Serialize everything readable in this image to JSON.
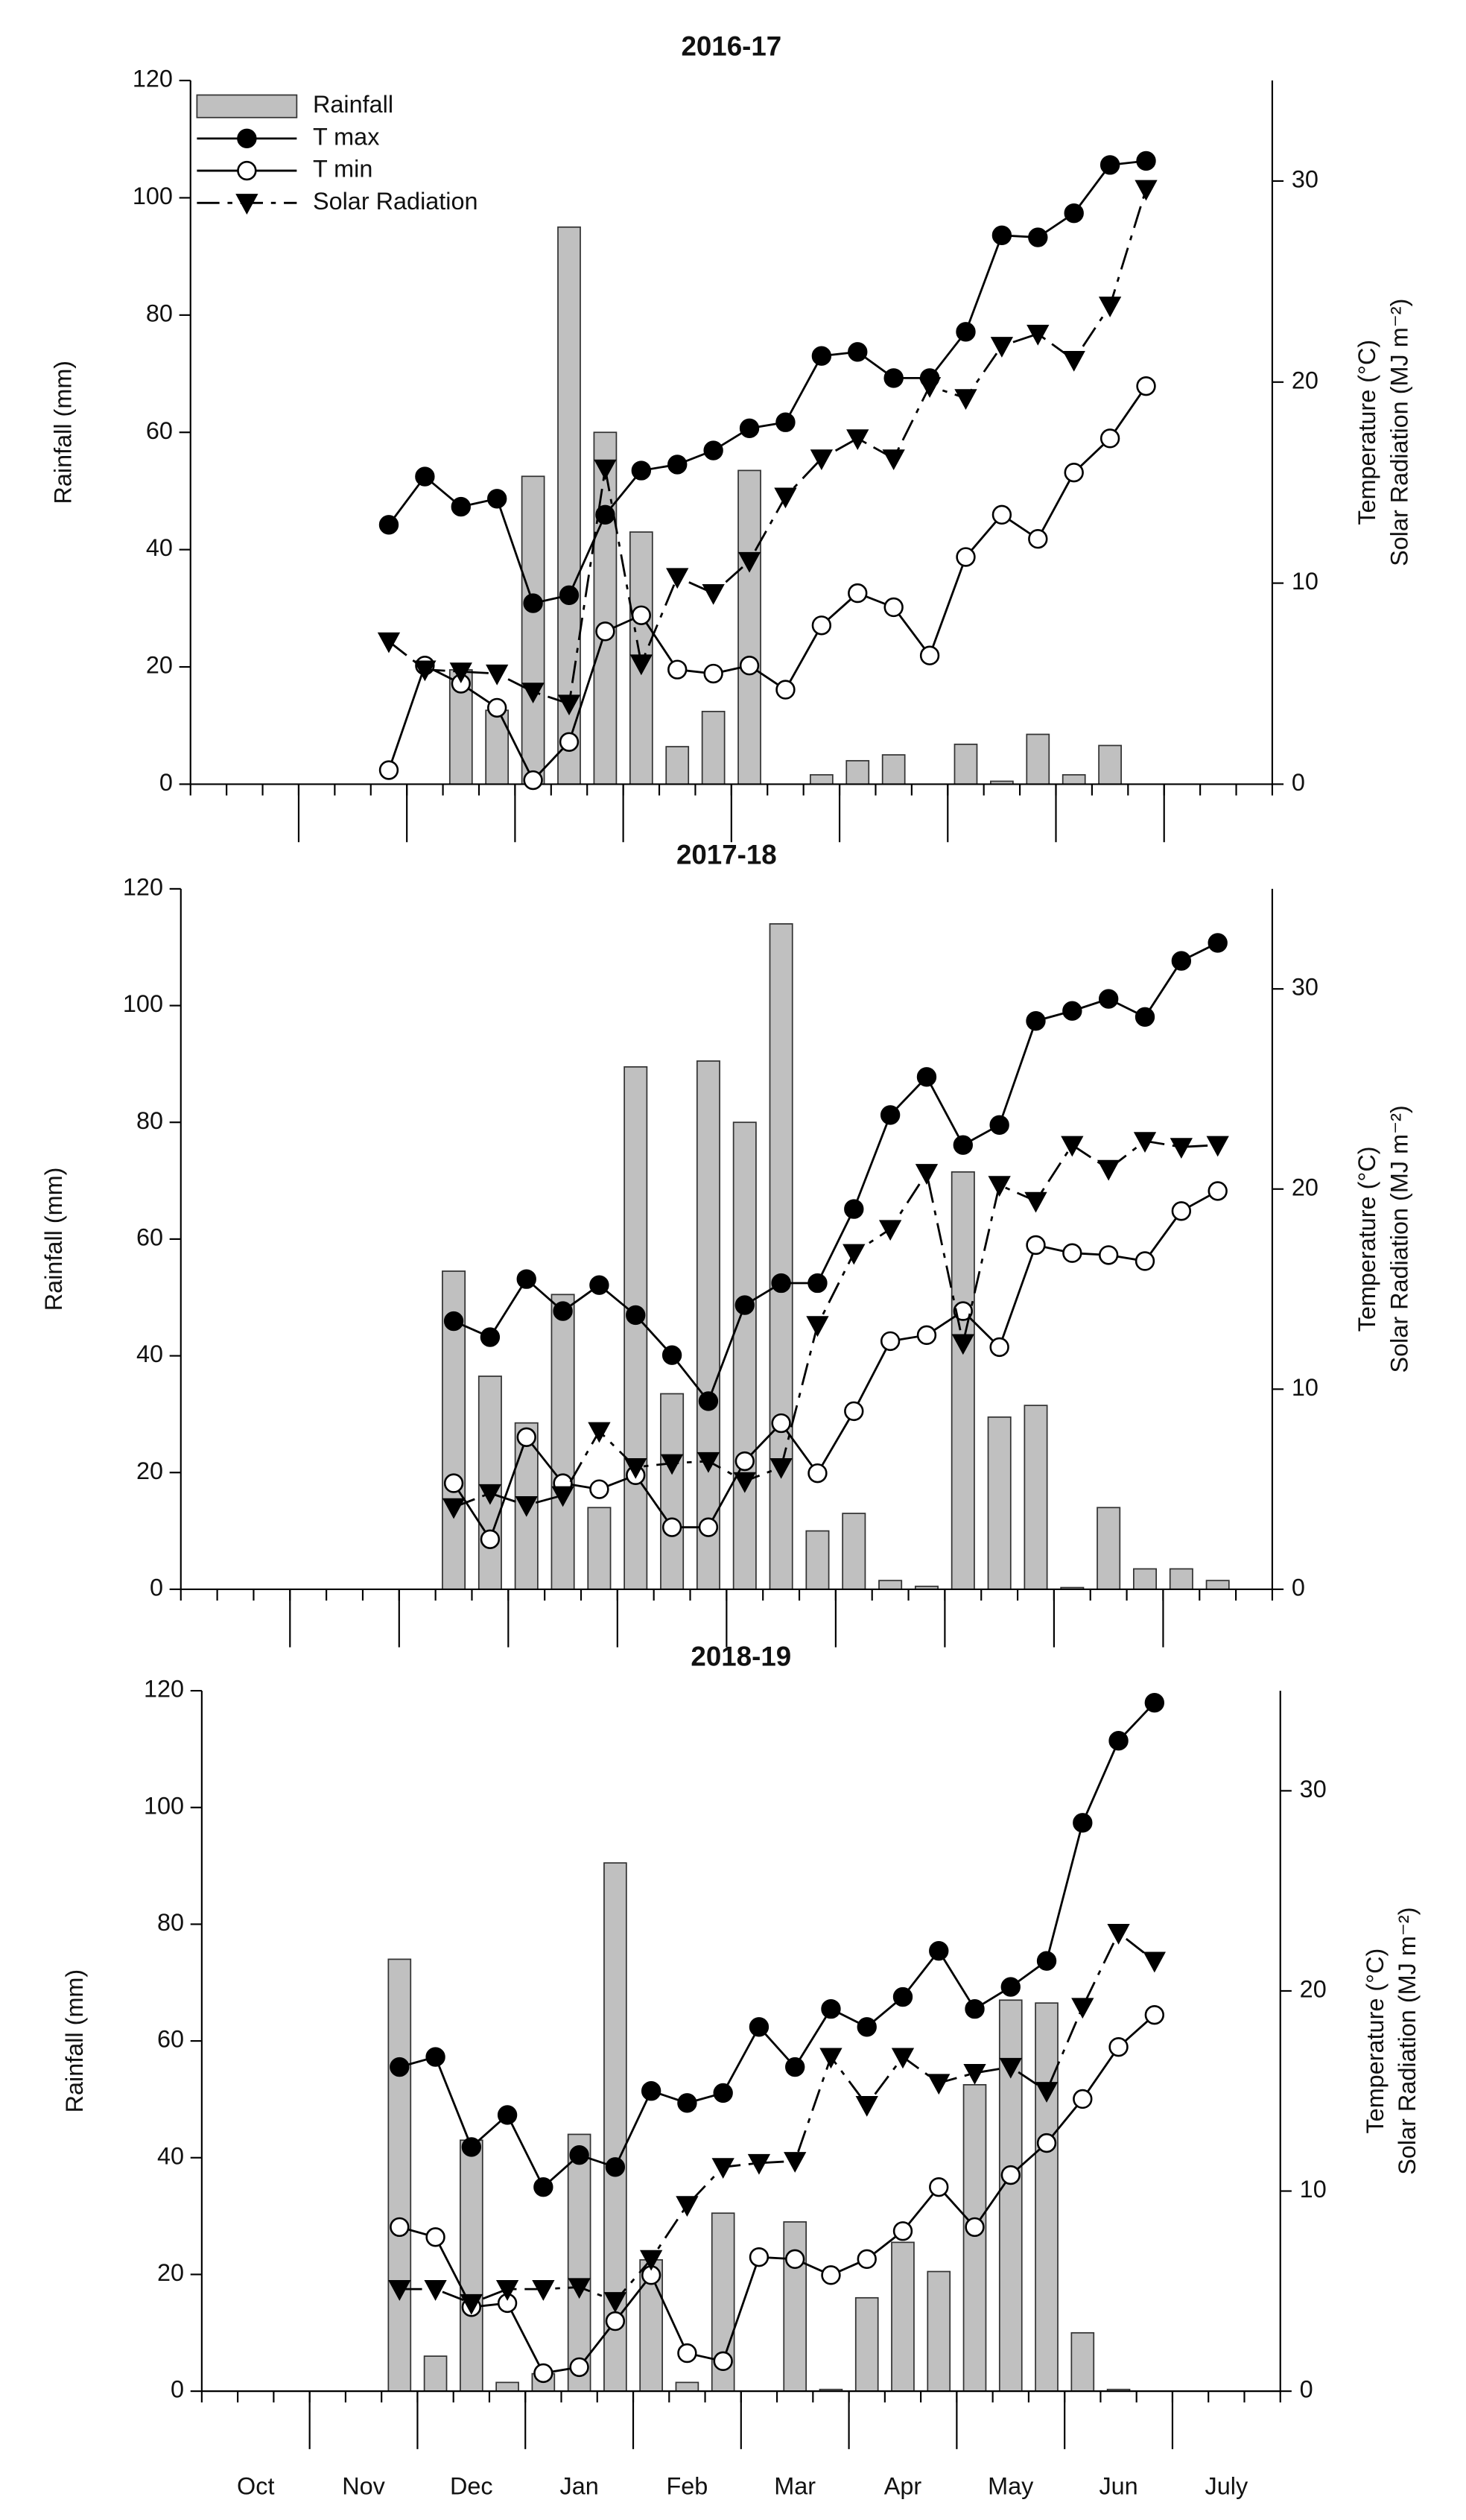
{
  "chart_data": [
    {
      "type": "bar-line",
      "title": "2016-17",
      "ylabel": "Rainfall (mm)",
      "y2label": [
        "Temperature (°C)",
        "Solar Radiation (MJ m⁻²)"
      ],
      "categories": [
        null,
        null,
        null,
        null,
        null,
        null,
        null,
        null,
        null,
        null,
        null,
        null,
        null,
        null,
        null,
        null,
        null,
        null,
        null,
        null,
        null,
        null,
        null,
        null,
        null,
        null,
        null,
        null,
        null,
        null
      ],
      "ylim": [
        0,
        120
      ],
      "yticks": [
        0,
        20,
        40,
        60,
        80,
        100,
        120
      ],
      "y2lim": [
        0,
        35
      ],
      "y2ticks": [
        0,
        10,
        20,
        30
      ],
      "legend": "upper left",
      "series": [
        {
          "name": "Rainfall",
          "kind": "bar",
          "color": "#c0c0c0",
          "values": [
            null,
            null,
            null,
            null,
            null,
            null,
            null,
            19.5,
            12.6,
            52.5,
            95,
            60,
            43,
            6.4,
            12.4,
            53.5,
            null,
            1.6,
            4,
            5,
            null,
            6.8,
            0.5,
            8.5,
            1.6,
            6.6,
            null,
            null,
            null,
            null
          ]
        },
        {
          "name": "T max",
          "kind": "line",
          "axis": "y2",
          "color": "#000000",
          "marker": "circle",
          "marker_fill": "#000000",
          "dash": "solid",
          "values": [
            null,
            null,
            null,
            null,
            null,
            12.9,
            15.3,
            13.8,
            14.2,
            9.0,
            9.4,
            13.4,
            15.6,
            15.9,
            16.6,
            17.7,
            18.0,
            21.3,
            21.5,
            20.2,
            20.2,
            22.5,
            27.3,
            27.2,
            28.4,
            30.8,
            31.0,
            null,
            null,
            null
          ]
        },
        {
          "name": "T min",
          "kind": "line",
          "axis": "y2",
          "color": "#000000",
          "marker": "circle",
          "marker_fill": "#ffffff",
          "dash": "solid",
          "values": [
            null,
            null,
            null,
            null,
            null,
            0.7,
            5.9,
            5.0,
            3.8,
            0.2,
            2.1,
            7.6,
            8.4,
            5.7,
            5.5,
            5.9,
            4.7,
            7.9,
            9.5,
            8.8,
            6.4,
            11.3,
            13.4,
            12.2,
            15.5,
            17.2,
            19.8,
            null,
            null,
            null
          ]
        },
        {
          "name": "Solar Radiation",
          "kind": "line",
          "axis": "y2",
          "color": "#000000",
          "marker": "triangle-down",
          "marker_fill": "#000000",
          "dash": "dashdot",
          "values": [
            null,
            null,
            null,
            null,
            null,
            7.1,
            5.7,
            5.6,
            5.5,
            4.6,
            4.0,
            15.7,
            6.0,
            10.3,
            9.5,
            11.1,
            14.3,
            16.2,
            17.2,
            16.2,
            19.8,
            19.2,
            21.8,
            22.4,
            21.1,
            23.8,
            29.6,
            null,
            null,
            null
          ]
        }
      ]
    },
    {
      "type": "bar-line",
      "title": "2017-18",
      "ylabel": "Rainfall (mm)",
      "y2label": [
        "Temperature (°C)",
        "Solar Radiation (MJ m⁻²)"
      ],
      "categories": [
        null,
        null,
        null,
        null,
        null,
        null,
        null,
        null,
        null,
        null,
        null,
        null,
        null,
        null,
        null,
        null,
        null,
        null,
        null,
        null,
        null,
        null,
        null,
        null,
        null,
        null,
        null,
        null,
        null,
        null
      ],
      "ylim": [
        0,
        120
      ],
      "yticks": [
        0,
        20,
        40,
        60,
        80,
        100,
        120
      ],
      "y2lim": [
        0,
        35
      ],
      "y2ticks": [
        0,
        10,
        20,
        30
      ],
      "series": [
        {
          "kind": "bar",
          "color": "#c0c0c0",
          "values": [
            null,
            null,
            null,
            null,
            null,
            null,
            null,
            54.5,
            36.5,
            28.5,
            50.5,
            14,
            89.5,
            33.5,
            90.5,
            80,
            114,
            10,
            13,
            1.5,
            0.5,
            71.5,
            29.5,
            31.5,
            0.3,
            14,
            3.5,
            3.5,
            1.5,
            null
          ]
        },
        {
          "kind": "line",
          "axis": "y2",
          "color": "#000000",
          "marker": "circle",
          "marker_fill": "#000000",
          "dash": "solid",
          "values": [
            null,
            null,
            null,
            null,
            null,
            null,
            null,
            13.4,
            12.6,
            15.5,
            13.9,
            15.2,
            13.7,
            11.7,
            9.4,
            14.2,
            15.3,
            15.3,
            19.0,
            23.7,
            25.6,
            22.2,
            23.2,
            28.4,
            28.9,
            29.5,
            28.6,
            31.4,
            32.3,
            null
          ]
        },
        {
          "kind": "line",
          "axis": "y2",
          "color": "#000000",
          "marker": "circle",
          "marker_fill": "#ffffff",
          "dash": "solid",
          "values": [
            null,
            null,
            null,
            null,
            null,
            null,
            null,
            5.3,
            2.5,
            7.6,
            5.3,
            5.0,
            5.7,
            3.1,
            3.1,
            6.4,
            8.3,
            5.8,
            8.9,
            12.4,
            12.7,
            13.9,
            12.1,
            17.2,
            16.8,
            16.7,
            16.4,
            18.9,
            19.9,
            null
          ]
        },
        {
          "kind": "line",
          "axis": "y2",
          "color": "#000000",
          "marker": "triangle-down",
          "marker_fill": "#000000",
          "dash": "dashdot",
          "values": [
            null,
            null,
            null,
            null,
            null,
            null,
            null,
            4.1,
            4.8,
            4.2,
            4.7,
            7.9,
            6.1,
            6.3,
            6.4,
            5.4,
            6.1,
            13.2,
            16.8,
            18.0,
            20.8,
            12.3,
            20.2,
            19.4,
            22.2,
            21.0,
            22.4,
            22.1,
            22.2,
            null
          ]
        }
      ]
    },
    {
      "type": "bar-line",
      "title": "2018-19",
      "ylabel": "Rainfall (mm)",
      "y2label": [
        "Temperature (°C)",
        "Solar Radiation (MJ m⁻²)"
      ],
      "categories": [
        null,
        "Oct",
        null,
        null,
        "Nov",
        null,
        null,
        "Dec",
        null,
        null,
        "Jan",
        null,
        null,
        "Feb",
        null,
        null,
        "Mar",
        null,
        null,
        "Apr",
        null,
        null,
        "May",
        null,
        null,
        "Jun",
        null,
        null,
        "July",
        null
      ],
      "ylim": [
        0,
        120
      ],
      "yticks": [
        0,
        20,
        40,
        60,
        80,
        100,
        120
      ],
      "y2lim": [
        0,
        35
      ],
      "y2ticks": [
        0,
        10,
        20,
        30
      ],
      "series": [
        {
          "kind": "bar",
          "color": "#c0c0c0",
          "values": [
            null,
            null,
            null,
            null,
            null,
            74,
            6,
            43,
            1.5,
            3,
            44,
            90.5,
            22.5,
            1.5,
            30.5,
            null,
            29,
            0.3,
            16,
            25.5,
            20.5,
            52.5,
            67,
            66.5,
            10,
            0.3,
            null,
            null,
            null,
            null
          ]
        },
        {
          "kind": "line",
          "axis": "y2",
          "color": "#000000",
          "marker": "circle",
          "marker_fill": "#000000",
          "dash": "solid",
          "values": [
            null,
            null,
            null,
            null,
            null,
            16.2,
            16.7,
            12.2,
            13.8,
            10.2,
            11.8,
            11.2,
            15.0,
            14.4,
            14.9,
            18.2,
            16.2,
            19.1,
            18.2,
            19.7,
            22.0,
            19.1,
            20.2,
            21.5,
            28.4,
            32.5,
            34.4,
            null,
            null,
            null
          ]
        },
        {
          "kind": "line",
          "axis": "y2",
          "color": "#000000",
          "marker": "circle",
          "marker_fill": "#ffffff",
          "dash": "solid",
          "values": [
            null,
            null,
            null,
            null,
            null,
            8.2,
            7.7,
            4.2,
            4.4,
            0.9,
            1.2,
            3.5,
            5.8,
            1.9,
            1.5,
            6.7,
            6.6,
            5.8,
            6.6,
            8.0,
            10.2,
            8.2,
            10.8,
            12.4,
            14.6,
            17.2,
            18.8,
            null,
            null,
            null
          ]
        },
        {
          "kind": "line",
          "axis": "y2",
          "color": "#000000",
          "marker": "triangle-down",
          "marker_fill": "#000000",
          "dash": "dashdot",
          "values": [
            null,
            null,
            null,
            null,
            null,
            5.1,
            5.1,
            4.4,
            5.1,
            5.1,
            5.2,
            4.5,
            6.6,
            9.3,
            11.2,
            11.4,
            11.5,
            16.7,
            14.3,
            16.7,
            15.4,
            15.9,
            16.2,
            15.0,
            19.2,
            22.9,
            21.5,
            null,
            null,
            null
          ]
        }
      ]
    }
  ]
}
